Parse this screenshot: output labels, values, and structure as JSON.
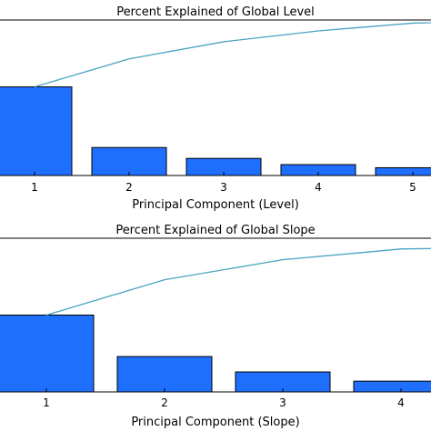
{
  "chart_data": [
    {
      "type": "bar",
      "title": "Percent Explained of Global Level",
      "xlabel": "Principal Component (Level)",
      "ylabel": "",
      "categories": [
        "1",
        "2",
        "3",
        "4",
        "5"
      ],
      "values": [
        57,
        18,
        11,
        7,
        5
      ],
      "cumulative": [
        57,
        75,
        86,
        93,
        98
      ],
      "bar_color": "#1f6fff",
      "line_color": "#4aa3c3"
    },
    {
      "type": "bar",
      "title": "Percent Explained of Global Slope",
      "xlabel": "Principal Component (Slope)",
      "ylabel": "",
      "categories": [
        "1",
        "2",
        "3",
        "4"
      ],
      "values": [
        50,
        23,
        13,
        7
      ],
      "cumulative": [
        50,
        73,
        86,
        93
      ],
      "bar_color": "#1f6fff",
      "line_color": "#4aa3c3"
    }
  ]
}
